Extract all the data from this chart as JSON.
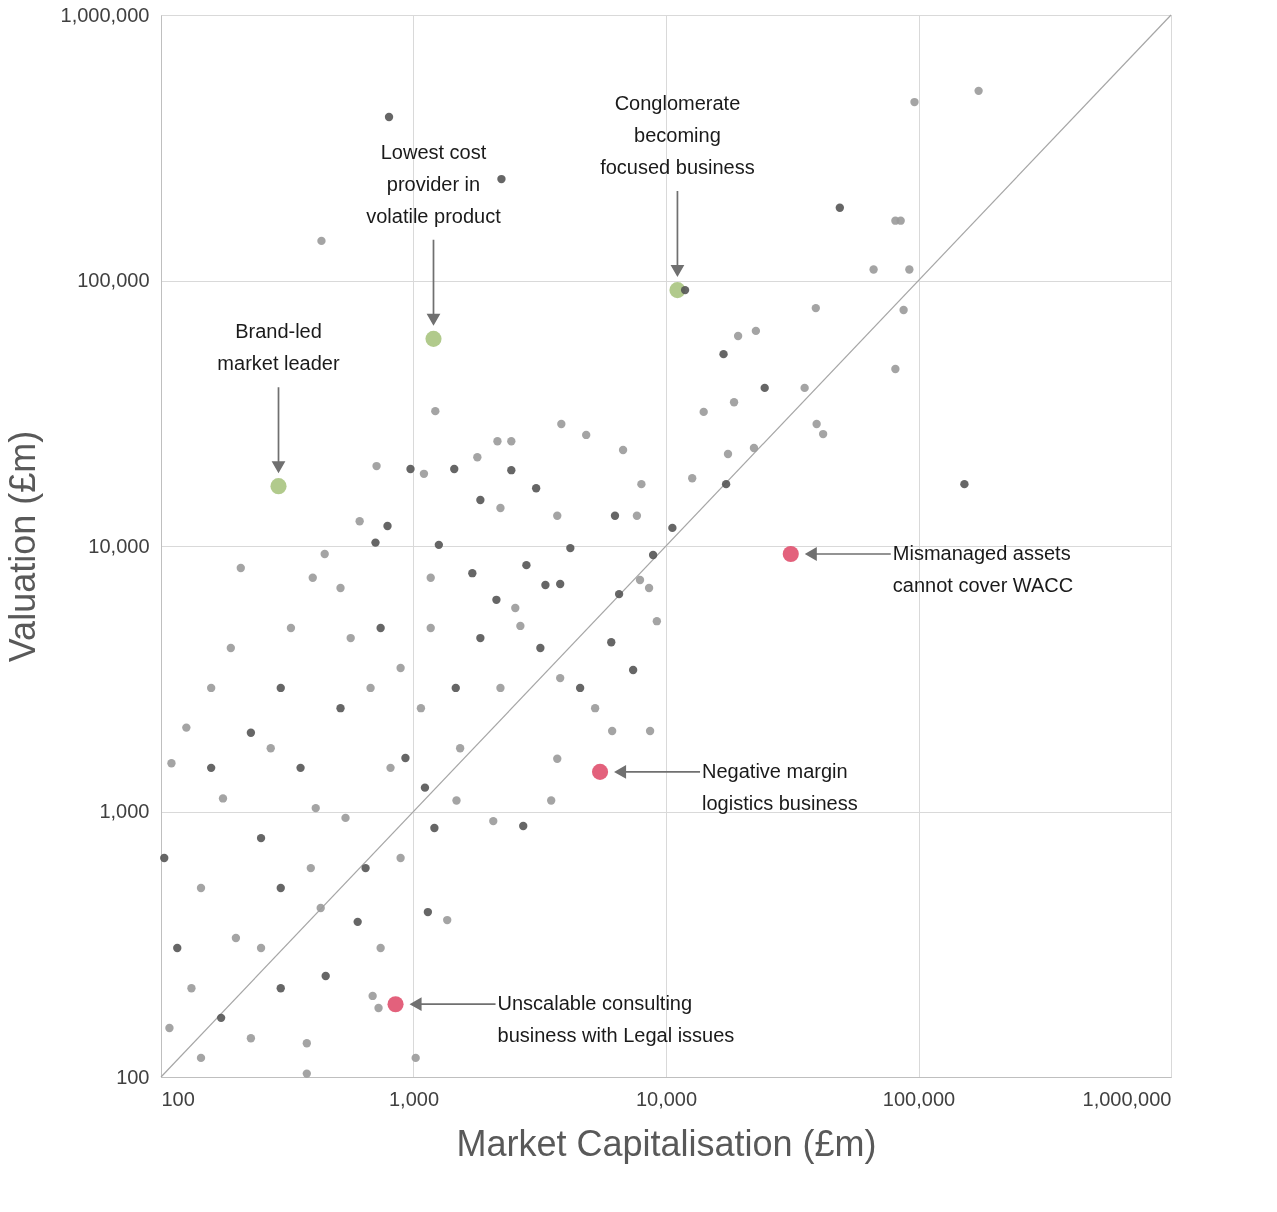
{
  "chart_data": {
    "type": "scatter",
    "xlabel": "Market Capitalisation (£m)",
    "ylabel": "Valuation (£m)",
    "log": "xy",
    "xlim": [
      100,
      1000000
    ],
    "ylim": [
      100,
      1000000
    ],
    "xticks": [
      100,
      {
        "value": 1000,
        "label": "1,000"
      },
      {
        "value": 10000,
        "label": "10,000"
      },
      {
        "value": 100000,
        "label": "100,000"
      },
      {
        "value": 1000000,
        "label": "1,000,000"
      }
    ],
    "yticks": [
      100,
      {
        "value": 1000,
        "label": "1,000"
      },
      {
        "value": 10000,
        "label": "10,000"
      },
      {
        "value": 100000,
        "label": "100,000"
      },
      {
        "value": 1000000,
        "label": "1,000,000"
      }
    ],
    "grid": true,
    "marker": "circle",
    "series": [
      {
        "type": "line",
        "marker": "none",
        "color": "#a6a6a6",
        "x": [
          100,
          1000000
        ],
        "values": [
          100,
          1000000
        ]
      },
      {
        "color": "#9a9a9a",
        "x": [
          432,
          173000,
          96400,
          81000,
          85000,
          66400,
          92000,
          39200,
          87300,
          22700,
          19300,
          81000,
          18600,
          35400,
          39500,
          41900,
          14100,
          22300,
          17600,
          12700,
          7890,
          8570,
          9200,
          7990,
          7670,
          6760,
          8650,
          6120,
          3710,
          3510,
          2070,
          1020,
          378,
          1360,
          1480,
          378,
          689,
          727,
          1220,
          1100,
          714,
          1790,
          2150,
          2440,
          3850,
          4830,
          612,
          445,
          399,
          2210,
          3710,
          2650,
          110,
          126,
          108,
          144,
          144,
          176,
          158,
          189,
          249,
          327,
          392,
          429,
          538,
          564,
          676,
          811,
          889,
          889,
          1070,
          1170,
          1530,
          2210,
          2530,
          3810,
          5240,
          207,
          132,
          198,
          227,
          410,
          1170,
          514,
          272,
          741
        ],
        "values": [
          141000,
          518000,
          470000,
          168000,
          168000,
          110000,
          110000,
          78700,
          77400,
          64600,
          61800,
          46400,
          34800,
          39400,
          28800,
          26400,
          32000,
          23400,
          22200,
          18000,
          7450,
          6950,
          5210,
          17100,
          13000,
          23000,
          2010,
          2010,
          1580,
          1100,
          920,
          118,
          103,
          390,
          1100,
          134,
          202,
          182,
          32200,
          18700,
          20000,
          21600,
          24800,
          24800,
          28800,
          26200,
          12400,
          9330,
          7590,
          13900,
          13000,
          5000,
          1520,
          2070,
          153,
          118,
          515,
          1120,
          2920,
          4130,
          306,
          4910,
          612,
          433,
          946,
          4500,
          2920,
          1460,
          668,
          3470,
          2450,
          4910,
          1730,
          2920,
          5840,
          3180,
          2450,
          8260,
          216,
          334,
          140,
          1030,
          7590,
          6950,
          1730,
          306
        ]
      },
      {
        "color": "#555555",
        "x": [
          800,
          2230,
          48800,
          16900,
          24600,
          17300,
          152000,
          10600,
          8890,
          7410,
          6070,
          6520,
          6280,
          2720,
          1140,
          1210,
          449,
          601,
          973,
          1450,
          789,
          707,
          1260,
          2440,
          3060,
          1840,
          4180,
          2800,
          3810,
          3330,
          1710,
          2130,
          103,
          116,
          173,
          227,
          249,
          298,
          298,
          357,
          514,
          646,
          741,
          1110,
          1470,
          1840,
          3180,
          4570,
          929,
          158,
          298,
          11900
        ],
        "values": [
          413000,
          241000,
          188000,
          52800,
          39400,
          17100,
          17100,
          11700,
          9250,
          3410,
          4340,
          6590,
          13000,
          882,
          418,
          867,
          240,
          384,
          19500,
          19500,
          11900,
          10300,
          10100,
          19300,
          16500,
          14900,
          9820,
          8470,
          7190,
          7130,
          7900,
          6270,
          668,
          306,
          167,
          1980,
          794,
          216,
          2920,
          1460,
          2450,
          612,
          4910,
          1230,
          2920,
          4500,
          4130,
          2920,
          1590,
          1460,
          515,
          92000
        ]
      },
      {
        "color": "#a9c47f",
        "x": [
          292,
          1200,
          11100
        ],
        "values": [
          16800,
          60300,
          92000
        ]
      },
      {
        "color": "#e0506e",
        "x": [
          31200,
          5480,
          849
        ],
        "values": [
          9330,
          1410,
          188
        ]
      }
    ],
    "annotations": [
      "Brand-led\nmarket leader",
      "Lowest cost\nprovider in\nvolatile product",
      "Conglomerate\nbecoming\nfocused business",
      "Mismanaged assets\ncannot cover WACC",
      "Negative margin\nlogistics business",
      "Unscalable consulting\nbusiness with Legal issues"
    ]
  }
}
